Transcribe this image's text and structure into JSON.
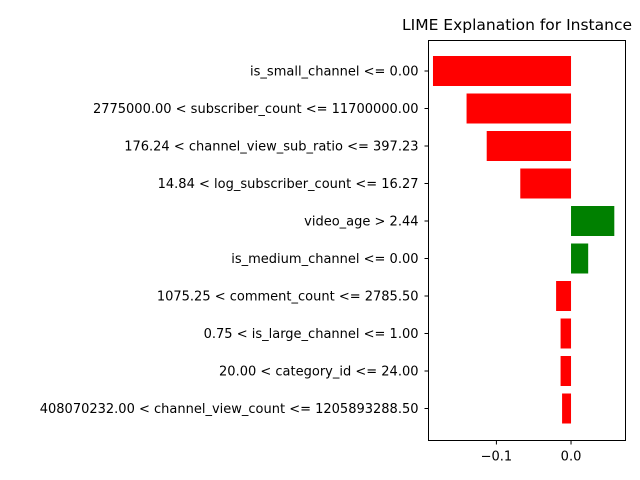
{
  "chart_data": {
    "type": "bar",
    "orientation": "horizontal",
    "title": "LIME Explanation for Instance",
    "xlabel": "",
    "ylabel": "",
    "xlim": [
      -0.191,
      0.073
    ],
    "xticks": [
      -0.1,
      0.0
    ],
    "xtick_labels": [
      "−0.1",
      "0.0"
    ],
    "grid": false,
    "colors": {
      "negative": "#ff0000",
      "positive": "#008000"
    },
    "categories": [
      "is_small_channel <= 0.00",
      "2775000.00 < subscriber_count <= 11700000.00",
      "176.24 < channel_view_sub_ratio <= 397.23",
      "14.84 < log_subscriber_count <= 16.27",
      "video_age > 2.44",
      "is_medium_channel <= 0.00",
      "1075.25 < comment_count <= 2785.50",
      "0.75 < is_large_channel <= 1.00",
      "20.00 < category_id <= 24.00",
      "408070232.00 < channel_view_count <= 1205893288.50"
    ],
    "values": [
      -0.185,
      -0.14,
      -0.113,
      -0.068,
      0.058,
      0.023,
      -0.02,
      -0.014,
      -0.014,
      -0.012
    ]
  }
}
